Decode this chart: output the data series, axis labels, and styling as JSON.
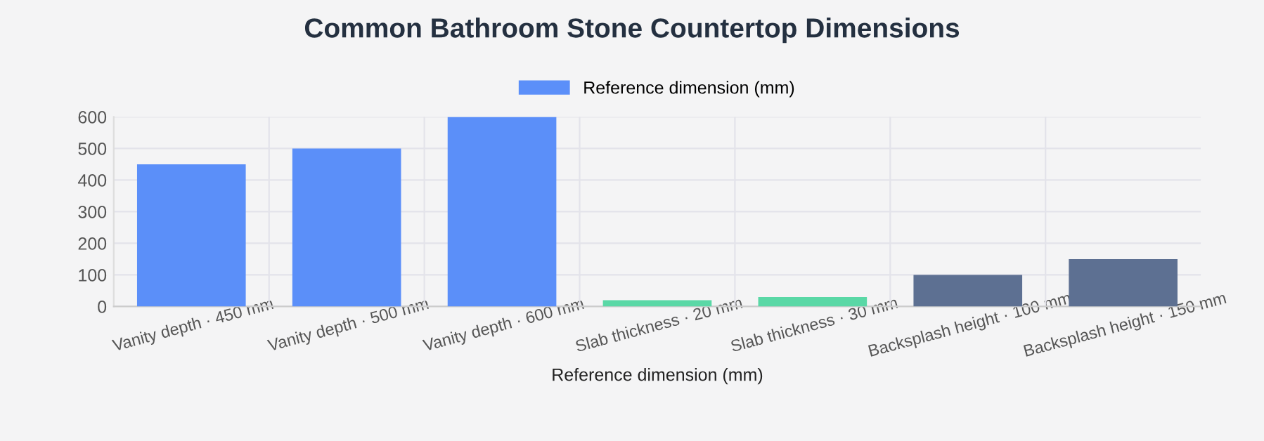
{
  "chart_data": {
    "type": "bar",
    "title": "Common Bathroom Stone Countertop Dimensions",
    "xlabel": "Reference dimension (mm)",
    "categories": [
      "Vanity depth · 450 mm",
      "Vanity depth · 500 mm",
      "Vanity depth · 600 mm",
      "Slab thickness · 20 mm",
      "Slab thickness · 30 mm",
      "Backsplash height · 100 mm",
      "Backsplash height · 150 mm"
    ],
    "series": [
      {
        "name": "Reference dimension (mm)",
        "color": "#5b8ff9",
        "colors": [
          "#5b8ff9",
          "#5b8ff9",
          "#5b8ff9",
          "#5ad8a6",
          "#5ad8a6",
          "#5d7092",
          "#5d7092"
        ],
        "values": [
          450,
          500,
          600,
          20,
          30,
          100,
          150
        ]
      }
    ],
    "ylim": [
      0,
      600
    ],
    "yticks": [
      0,
      100,
      200,
      300,
      400,
      500,
      600
    ],
    "grid": true,
    "legend": "top"
  }
}
